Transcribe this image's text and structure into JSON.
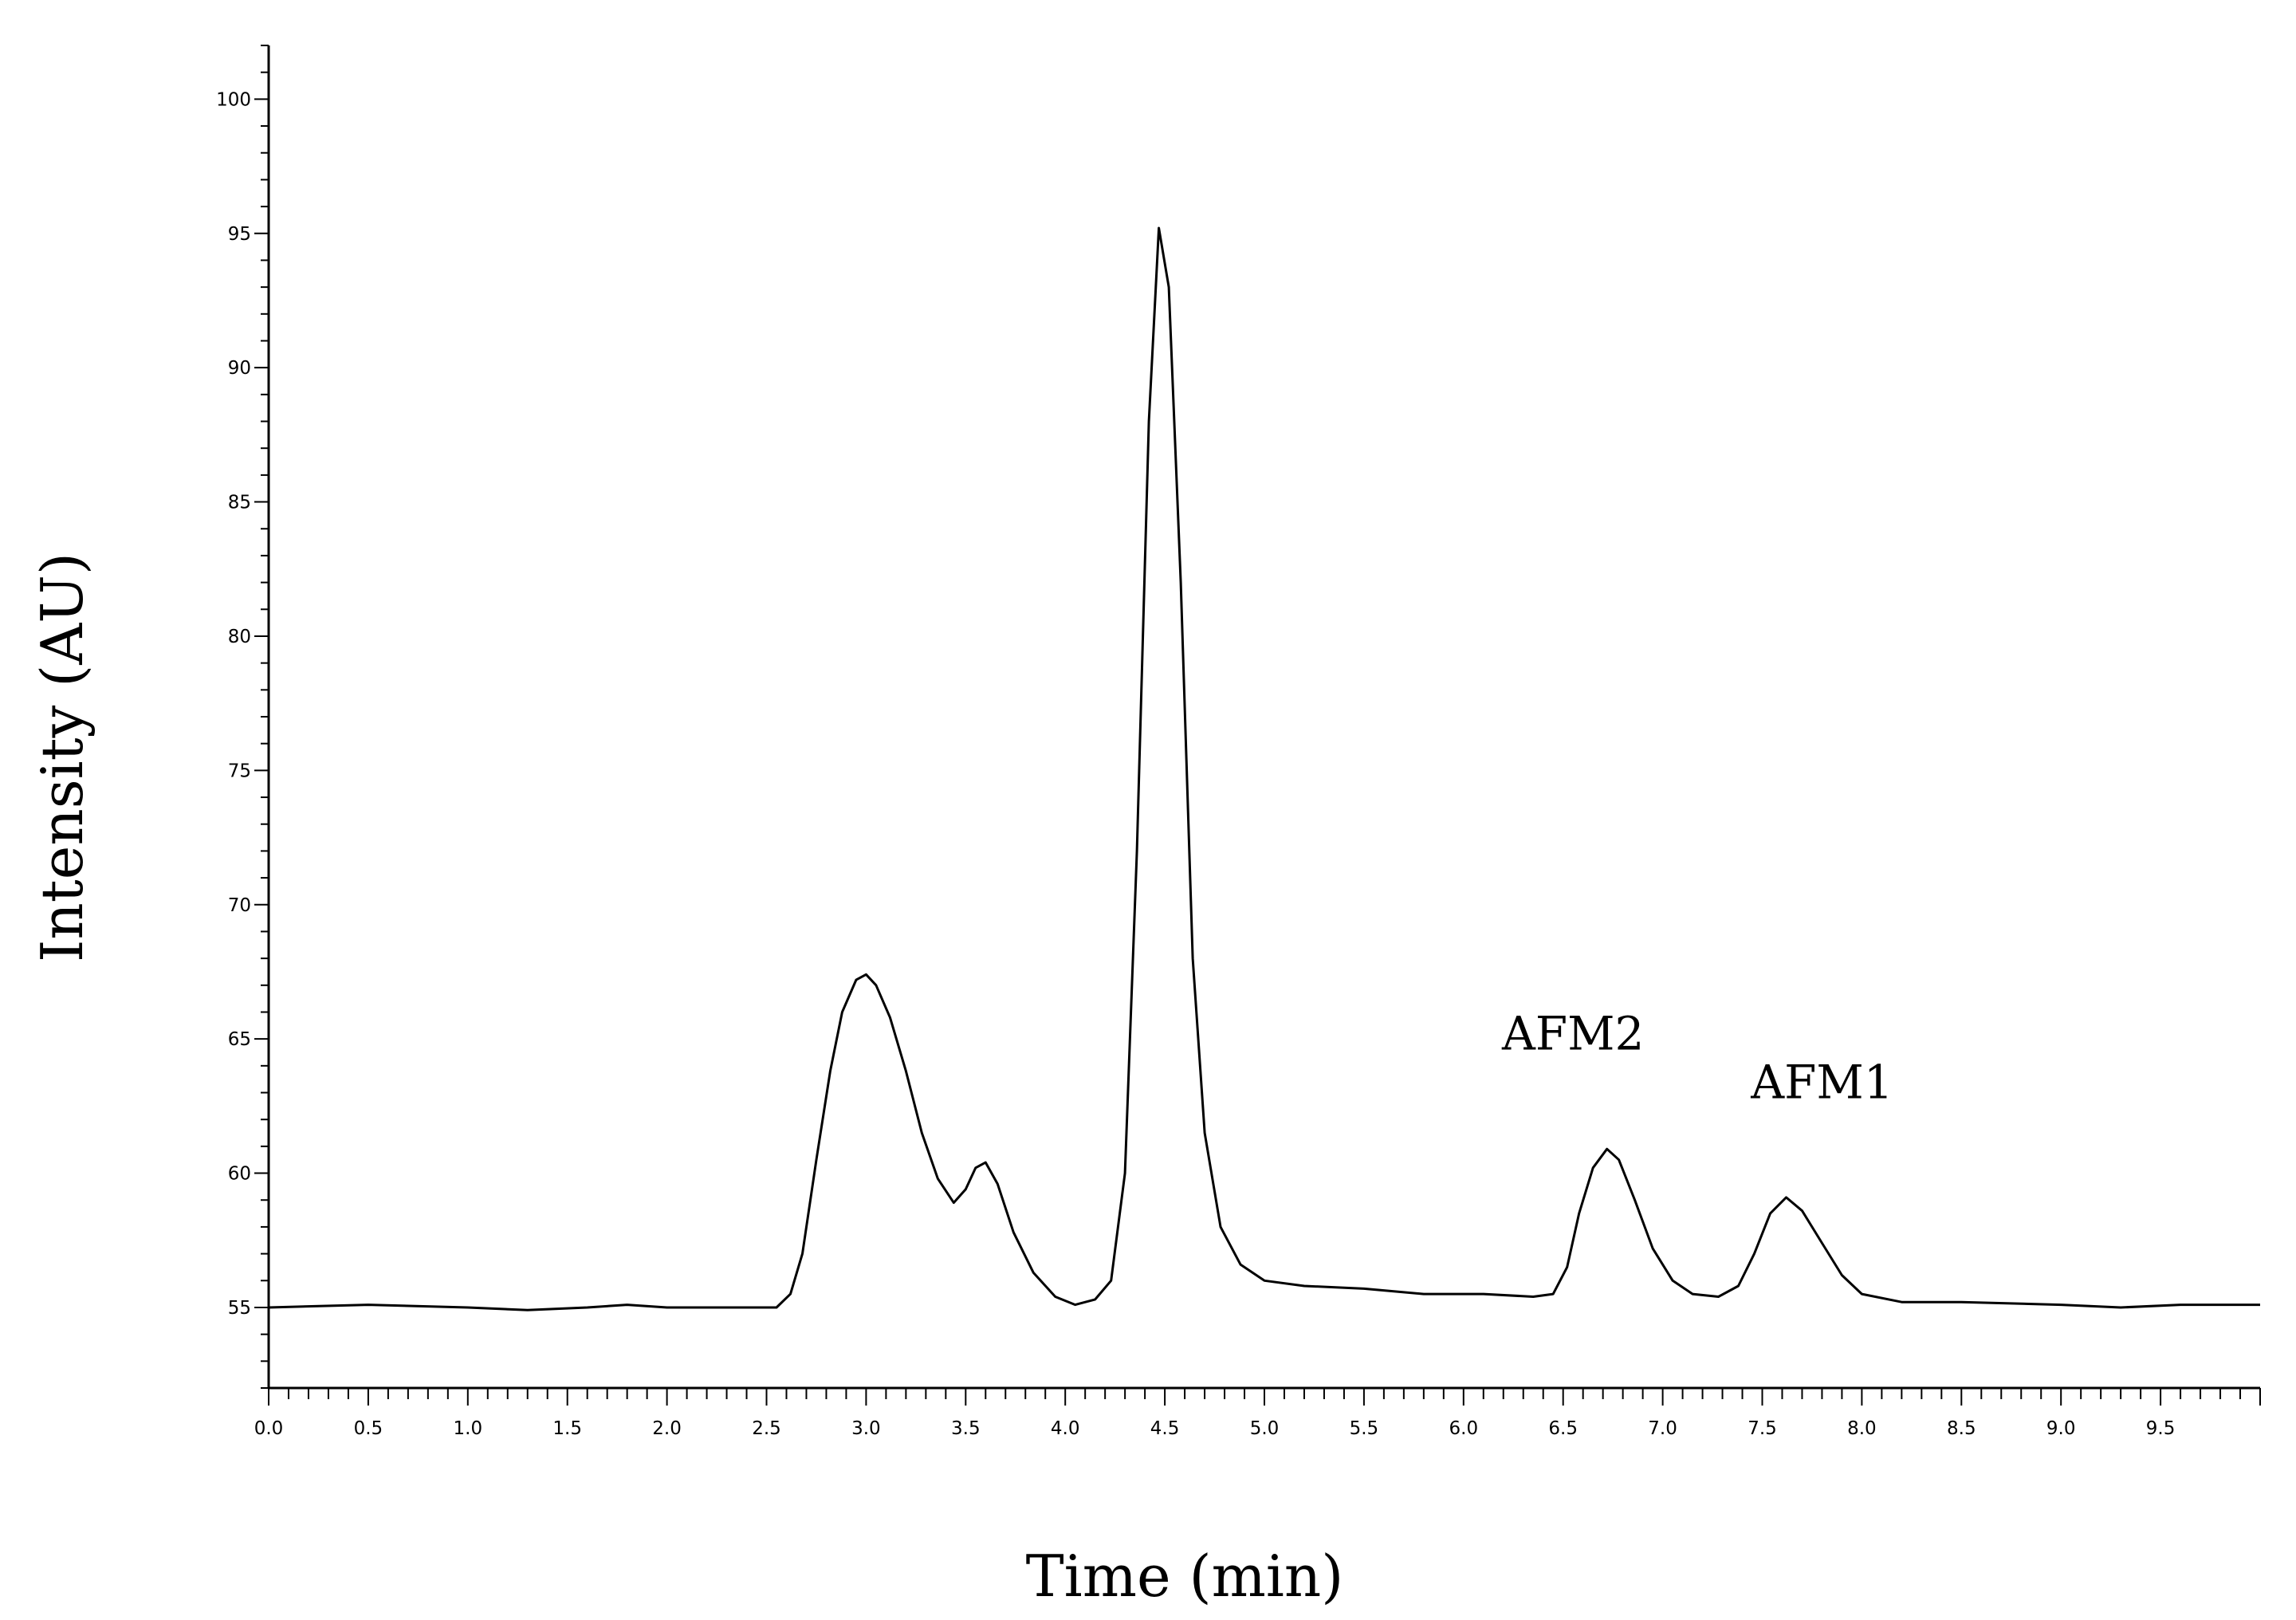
{
  "chart_data": {
    "type": "line",
    "xlabel": "Time (min)",
    "ylabel": "Intensity (AU)",
    "xlim": [
      0,
      10
    ],
    "ylim": [
      52,
      102
    ],
    "x_ticks": [
      "0.0",
      "0.5",
      "1.0",
      "1.5",
      "2.0",
      "2.5",
      "3.0",
      "3.5",
      "4.0",
      "4.5",
      "5.0",
      "5.5",
      "6.0",
      "6.5",
      "7.0",
      "7.5",
      "8.0",
      "8.5",
      "9.0",
      "9.5"
    ],
    "y_ticks": [
      "55",
      "60",
      "65",
      "70",
      "75",
      "80",
      "85",
      "90",
      "95",
      "100"
    ],
    "grid": false,
    "series": [
      {
        "color": "#000000",
        "points": [
          [
            0.0,
            55.0
          ],
          [
            0.5,
            55.1
          ],
          [
            1.0,
            55.0
          ],
          [
            1.3,
            54.9
          ],
          [
            1.6,
            55.0
          ],
          [
            1.8,
            55.1
          ],
          [
            2.0,
            55.0
          ],
          [
            2.3,
            55.0
          ],
          [
            2.55,
            55.0
          ],
          [
            2.62,
            55.5
          ],
          [
            2.68,
            57.0
          ],
          [
            2.75,
            60.5
          ],
          [
            2.82,
            63.8
          ],
          [
            2.88,
            66.0
          ],
          [
            2.95,
            67.2
          ],
          [
            3.0,
            67.4
          ],
          [
            3.05,
            67.0
          ],
          [
            3.12,
            65.8
          ],
          [
            3.2,
            63.8
          ],
          [
            3.28,
            61.5
          ],
          [
            3.36,
            59.8
          ],
          [
            3.44,
            58.9
          ],
          [
            3.5,
            59.4
          ],
          [
            3.55,
            60.2
          ],
          [
            3.6,
            60.4
          ],
          [
            3.66,
            59.6
          ],
          [
            3.74,
            57.8
          ],
          [
            3.84,
            56.3
          ],
          [
            3.95,
            55.4
          ],
          [
            4.05,
            55.1
          ],
          [
            4.15,
            55.3
          ],
          [
            4.23,
            56.0
          ],
          [
            4.3,
            60.0
          ],
          [
            4.36,
            72.0
          ],
          [
            4.42,
            88.0
          ],
          [
            4.47,
            95.2
          ],
          [
            4.52,
            93.0
          ],
          [
            4.58,
            82.0
          ],
          [
            4.64,
            68.0
          ],
          [
            4.7,
            61.5
          ],
          [
            4.78,
            58.0
          ],
          [
            4.88,
            56.6
          ],
          [
            5.0,
            56.0
          ],
          [
            5.2,
            55.8
          ],
          [
            5.5,
            55.7
          ],
          [
            5.8,
            55.5
          ],
          [
            6.1,
            55.5
          ],
          [
            6.35,
            55.4
          ],
          [
            6.45,
            55.5
          ],
          [
            6.52,
            56.5
          ],
          [
            6.58,
            58.5
          ],
          [
            6.65,
            60.2
          ],
          [
            6.72,
            60.9
          ],
          [
            6.78,
            60.5
          ],
          [
            6.86,
            59.0
          ],
          [
            6.95,
            57.2
          ],
          [
            7.05,
            56.0
          ],
          [
            7.15,
            55.5
          ],
          [
            7.28,
            55.4
          ],
          [
            7.38,
            55.8
          ],
          [
            7.46,
            57.0
          ],
          [
            7.54,
            58.5
          ],
          [
            7.62,
            59.1
          ],
          [
            7.7,
            58.6
          ],
          [
            7.8,
            57.4
          ],
          [
            7.9,
            56.2
          ],
          [
            8.0,
            55.5
          ],
          [
            8.2,
            55.2
          ],
          [
            8.5,
            55.2
          ],
          [
            9.0,
            55.1
          ],
          [
            9.3,
            55.0
          ],
          [
            9.6,
            55.1
          ],
          [
            10.0,
            55.1
          ]
        ]
      }
    ],
    "annotations": [
      {
        "text": "AFM2",
        "x": 6.55,
        "y": 64.6
      },
      {
        "text": "AFM1",
        "x": 7.8,
        "y": 62.8
      }
    ]
  }
}
